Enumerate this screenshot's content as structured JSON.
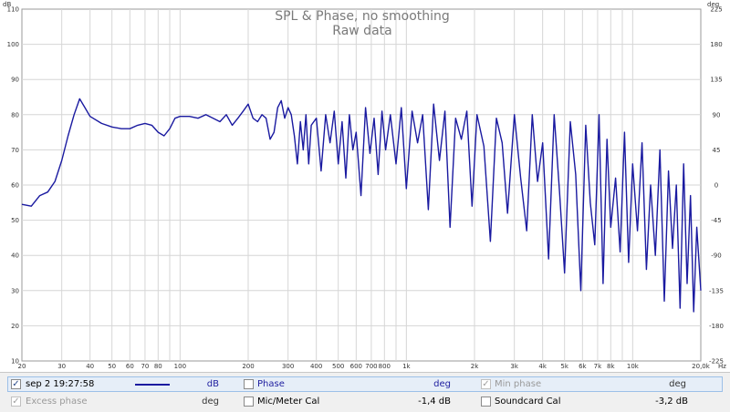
{
  "chart_data": {
    "type": "line",
    "title": "SPL & Phase, no smoothing",
    "subtitle": "Raw data",
    "left_unit": "dB",
    "right_unit": "deg",
    "x_unit": "Hz",
    "xscale": "log",
    "xlim": [
      20,
      20000
    ],
    "ylim": [
      10,
      110
    ],
    "y2lim": [
      -225,
      225
    ],
    "x_ticks": [
      "20",
      "30",
      "40",
      "50",
      "60",
      "70",
      "80",
      "100",
      "200",
      "300",
      "400",
      "500",
      "600",
      "700",
      "800",
      "1k",
      "2k",
      "3k",
      "4k",
      "5k",
      "6k",
      "7k",
      "8k",
      "10k",
      "20,0k"
    ],
    "x_tick_values": [
      20,
      30,
      40,
      50,
      60,
      70,
      80,
      100,
      200,
      300,
      400,
      500,
      600,
      700,
      800,
      1000,
      2000,
      3000,
      4000,
      5000,
      6000,
      7000,
      8000,
      10000,
      20000
    ],
    "y_ticks": [
      "110",
      "100",
      "90",
      "80",
      "70",
      "60",
      "50",
      "40",
      "30",
      "20",
      "10"
    ],
    "y_tick_values": [
      110,
      100,
      90,
      80,
      70,
      60,
      50,
      40,
      30,
      20,
      10
    ],
    "y2_ticks": [
      "225",
      "180",
      "135",
      "90",
      "45",
      "0",
      "-45",
      "-90",
      "-135",
      "-180",
      "-225"
    ],
    "y2_tick_values": [
      225,
      180,
      135,
      90,
      45,
      0,
      -45,
      -90,
      -135,
      -180,
      -225
    ],
    "series": [
      {
        "name": "sep 2 19:27:58",
        "axis": "dB",
        "color": "#1a1aa0",
        "x": [
          20,
          22,
          24,
          26,
          28,
          30,
          32,
          34,
          36,
          38,
          40,
          45,
          50,
          55,
          60,
          65,
          70,
          75,
          80,
          85,
          90,
          95,
          100,
          110,
          120,
          130,
          140,
          150,
          160,
          170,
          180,
          190,
          200,
          210,
          220,
          230,
          240,
          250,
          260,
          270,
          280,
          290,
          300,
          310,
          320,
          330,
          340,
          350,
          360,
          370,
          380,
          400,
          420,
          440,
          460,
          480,
          500,
          520,
          540,
          560,
          580,
          600,
          630,
          660,
          690,
          720,
          750,
          780,
          810,
          850,
          900,
          950,
          1000,
          1060,
          1120,
          1180,
          1250,
          1320,
          1400,
          1480,
          1560,
          1650,
          1750,
          1850,
          1950,
          2050,
          2200,
          2350,
          2500,
          2650,
          2800,
          3000,
          3200,
          3400,
          3600,
          3800,
          4000,
          4250,
          4500,
          4750,
          5000,
          5300,
          5600,
          5900,
          6200,
          6500,
          6800,
          7100,
          7400,
          7700,
          8000,
          8400,
          8800,
          9200,
          9600,
          10000,
          10500,
          11000,
          11500,
          12000,
          12600,
          13200,
          13800,
          14400,
          15000,
          15600,
          16200,
          16800,
          17400,
          18000,
          18600,
          19200,
          20000
        ],
        "values": [
          54.5,
          54,
          57,
          58,
          61,
          67,
          74,
          80,
          84.5,
          82,
          79.5,
          77.5,
          76.5,
          76,
          76,
          77,
          77.5,
          77,
          75,
          74,
          76,
          79,
          79.5,
          79.5,
          79,
          80,
          79,
          78,
          80,
          77,
          79,
          81,
          83,
          79,
          78,
          80,
          79,
          73,
          75,
          82,
          84,
          79,
          82,
          80,
          74,
          66,
          78,
          70,
          80,
          66,
          77,
          79,
          64,
          80,
          72,
          81,
          66,
          78,
          62,
          80,
          70,
          75,
          57,
          82,
          69,
          79,
          63,
          81,
          70,
          80,
          66,
          82,
          59,
          81,
          72,
          80,
          53,
          83,
          67,
          81,
          48,
          79,
          73,
          81,
          54,
          80,
          71,
          44,
          79,
          72,
          52,
          80,
          62,
          47,
          80,
          61,
          72,
          39,
          80,
          58,
          35,
          78,
          63,
          30,
          77,
          55,
          43,
          80,
          32,
          73,
          48,
          62,
          41,
          75,
          38,
          66,
          47,
          72,
          36,
          60,
          40,
          70,
          27,
          64,
          42,
          60,
          25,
          66,
          32,
          57,
          24,
          48,
          30
        ]
      }
    ]
  },
  "legend": {
    "row1": {
      "measurement_label": "sep 2 19:27:58",
      "measurement_unit": "dB",
      "phase_label": "Phase",
      "phase_unit": "deg",
      "min_phase_label": "Min phase",
      "min_phase_unit": "deg"
    },
    "row2": {
      "excess_phase_label": "Excess phase",
      "excess_phase_unit": "deg",
      "mic_cal_label": "Mic/Meter Cal",
      "mic_cal_value": "-1,4 dB",
      "soundcard_cal_label": "Soundcard Cal",
      "soundcard_cal_value": "-3,2 dB"
    },
    "checkmark": "✓"
  }
}
